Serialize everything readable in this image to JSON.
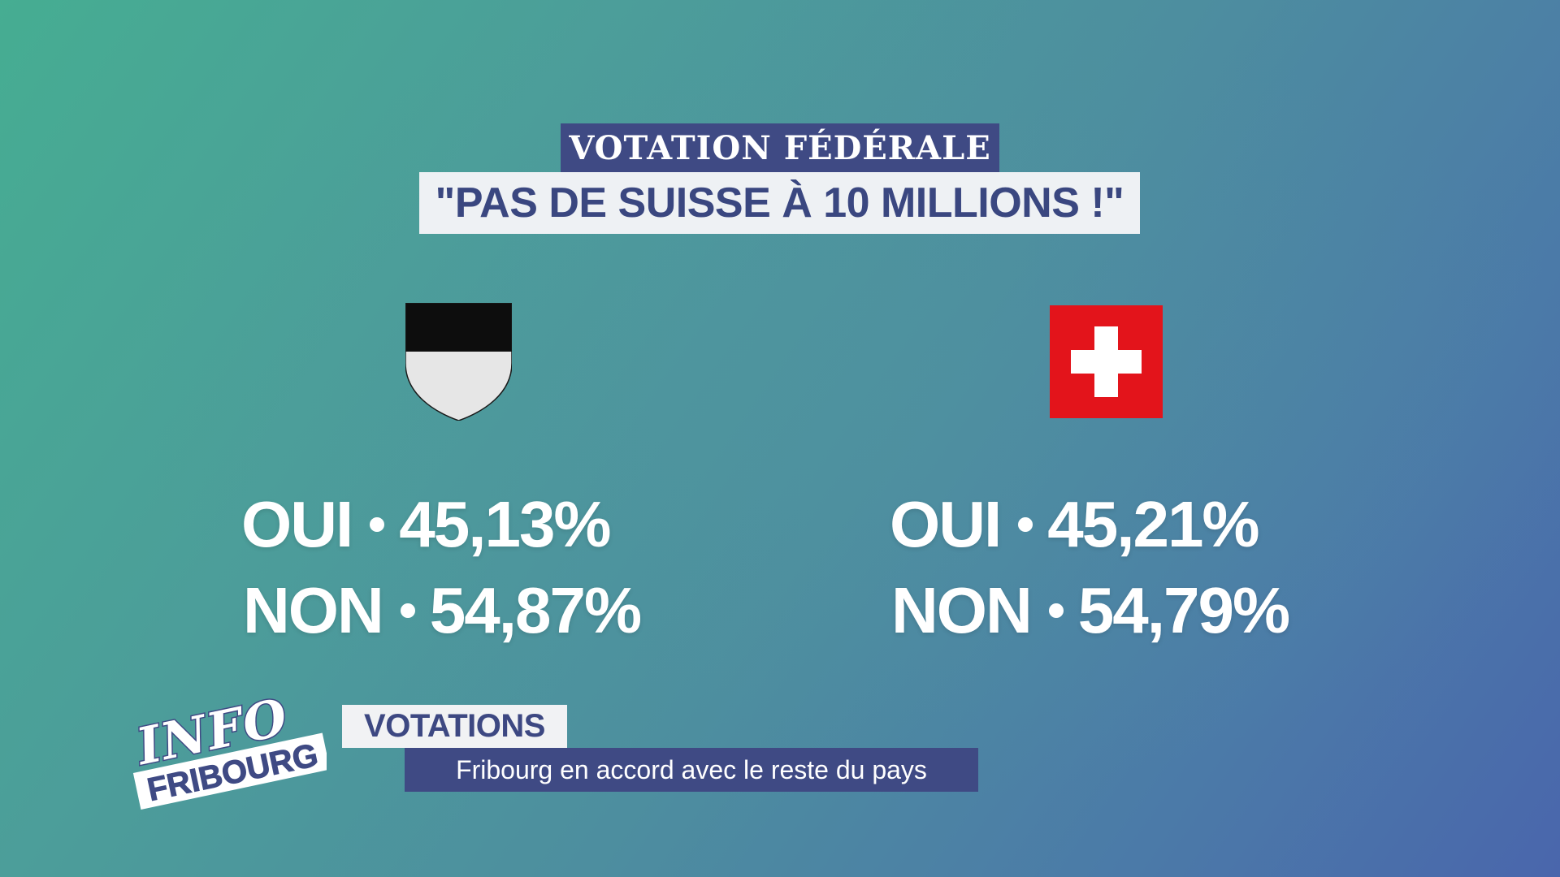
{
  "header": {
    "kicker": "VOTATION FÉDÉRALE",
    "title": "\"PAS DE SUISSE À 10 MILLIONS !\""
  },
  "emblems": {
    "left": "fribourg-shield-icon",
    "right": "swiss-flag-icon"
  },
  "results": {
    "fribourg": {
      "yes_label": "OUI",
      "yes_value": "45,13%",
      "no_label": "NON",
      "no_value": "54,87%"
    },
    "switzerland": {
      "yes_label": "OUI",
      "yes_value": "45,21%",
      "no_label": "NON",
      "no_value": "54,79%"
    }
  },
  "logo": {
    "line1": "INFO",
    "line2": "FRIBOURG"
  },
  "lower_third": {
    "category": "VOTATIONS",
    "headline": "Fribourg en accord avec le reste du pays"
  },
  "colors": {
    "navy": "#3f4a84",
    "swiss_red": "#e3141b",
    "white": "#ffffff"
  }
}
